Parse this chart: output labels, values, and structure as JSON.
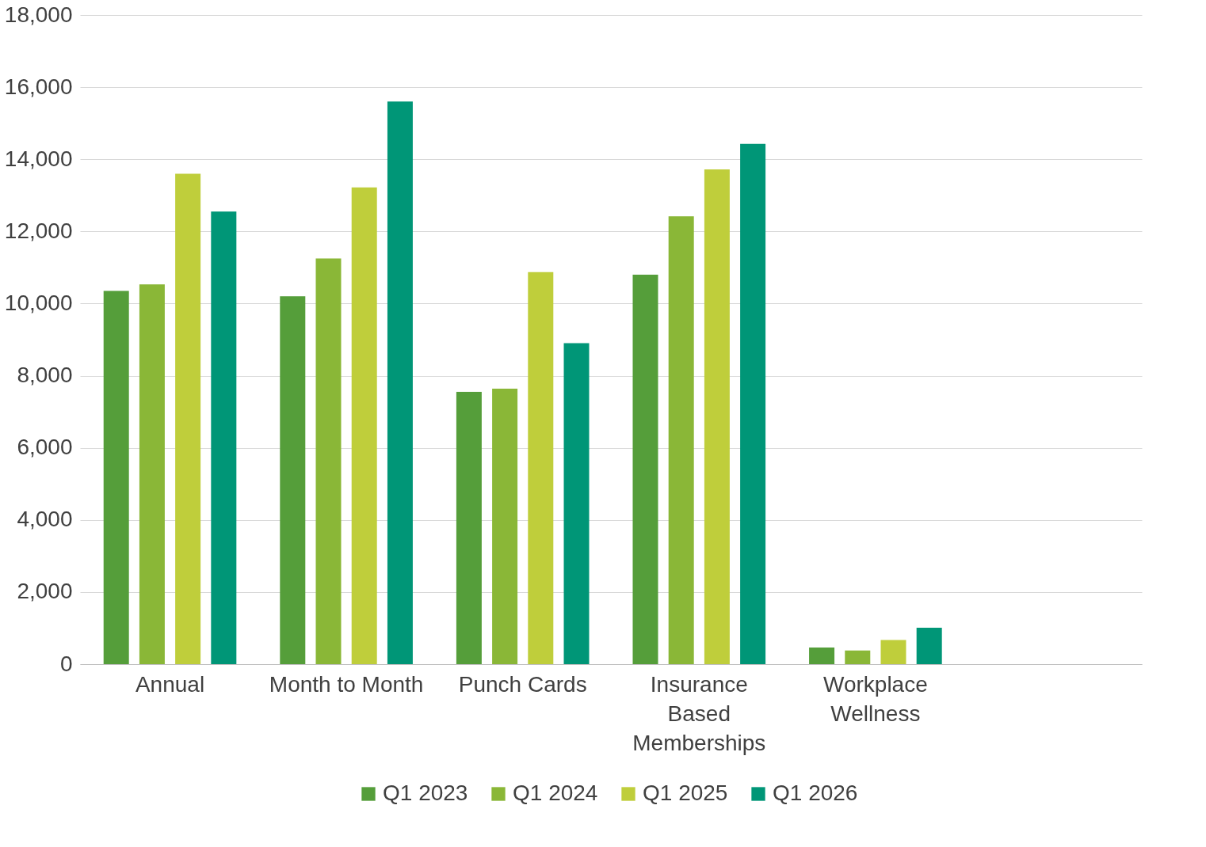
{
  "chart_data": {
    "type": "bar",
    "categories": [
      "Annual",
      "Month to Month",
      "Punch Cards",
      "Insurance Based Memberships",
      "Workplace Wellness",
      null
    ],
    "series": [
      {
        "name": "Q1 2023",
        "color": "#559e3a",
        "values": [
          10350,
          10200,
          7550,
          10800,
          460,
          null
        ]
      },
      {
        "name": "Q1 2024",
        "color": "#8ab737",
        "values": [
          10530,
          11250,
          7640,
          12420,
          380,
          null
        ]
      },
      {
        "name": "Q1 2025",
        "color": "#bfce3b",
        "values": [
          13600,
          13220,
          10870,
          13720,
          670,
          null
        ]
      },
      {
        "name": "Q1 2026",
        "color": "#009677",
        "values": [
          12550,
          15600,
          8900,
          14430,
          1010,
          null
        ]
      }
    ],
    "ylim": [
      0,
      18000
    ],
    "yticks": [
      0,
      {
        "value": 2000,
        "label": "2,000"
      },
      {
        "value": 4000,
        "label": "4,000"
      },
      {
        "value": 6000,
        "label": "6,000"
      },
      {
        "value": 8000,
        "label": "8,000"
      },
      {
        "value": 10000,
        "label": "10,000"
      },
      {
        "value": 12000,
        "label": "12,000"
      },
      {
        "value": 14000,
        "label": "14,000"
      },
      {
        "value": 16000,
        "label": "16,000"
      },
      {
        "value": 18000,
        "label": "18,000"
      }
    ],
    "grid": "y",
    "legend": "bottom"
  }
}
